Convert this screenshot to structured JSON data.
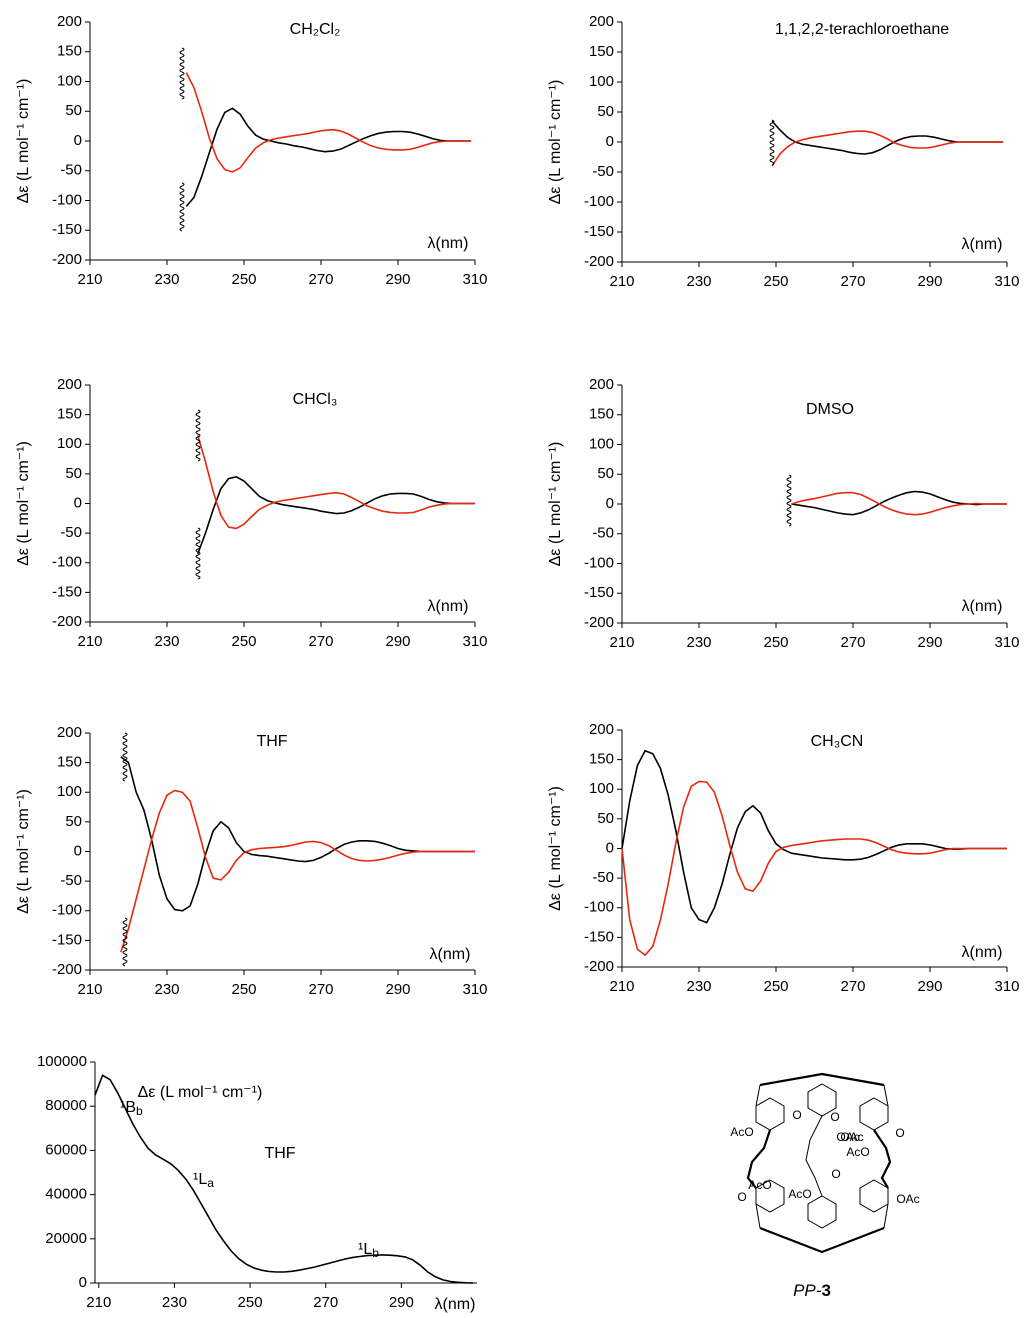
{
  "chart_data": [
    {
      "type": "line",
      "title": "CH₂Cl₂",
      "ylabel": "Δε (L mol⁻¹ cm⁻¹)",
      "xlabel": "λ(nm)",
      "x": [
        235,
        237,
        239,
        241,
        243,
        245,
        247,
        249,
        251,
        253,
        255,
        257,
        259,
        261,
        263,
        265,
        267,
        269,
        271,
        273,
        275,
        277,
        279,
        281,
        283,
        285,
        287,
        289,
        291,
        293,
        295,
        297,
        299,
        301,
        303,
        305,
        307,
        309
      ],
      "series": [
        {
          "color": "#000000",
          "values": [
            -110,
            -95,
            -60,
            -20,
            20,
            48,
            55,
            45,
            25,
            10,
            3,
            0,
            -3,
            -5,
            -8,
            -10,
            -13,
            -16,
            -18,
            -17,
            -14,
            -8,
            -2,
            4,
            9,
            13,
            15,
            16,
            16,
            15,
            12,
            8,
            4,
            1,
            0,
            0,
            0,
            0
          ]
        },
        {
          "color": "#e8280c",
          "values": [
            115,
            90,
            50,
            5,
            -30,
            -48,
            -52,
            -45,
            -28,
            -12,
            -3,
            2,
            5,
            7,
            9,
            11,
            13,
            16,
            18,
            19,
            17,
            12,
            5,
            -2,
            -8,
            -12,
            -14,
            -15,
            -15,
            -14,
            -11,
            -7,
            -3,
            -1,
            0,
            0,
            0,
            0
          ]
        }
      ],
      "xlim": [
        210,
        310
      ],
      "ylim": [
        -200,
        200
      ],
      "xticks": [
        210,
        230,
        250,
        270,
        290,
        310
      ],
      "yticks": [
        -200,
        -150,
        -100,
        -50,
        0,
        50,
        100,
        150,
        200
      ]
    },
    {
      "type": "line",
      "title": "1,1,2,2-terachloroethane",
      "ylabel": "Δε (L mol⁻¹ cm⁻¹)",
      "xlabel": "λ(nm)",
      "x": [
        249,
        251,
        253,
        255,
        257,
        259,
        261,
        263,
        265,
        267,
        269,
        271,
        273,
        275,
        277,
        279,
        281,
        283,
        285,
        287,
        289,
        291,
        293,
        295,
        297,
        299,
        301,
        303,
        305,
        307,
        309
      ],
      "series": [
        {
          "color": "#000000",
          "values": [
            35,
            20,
            8,
            0,
            -4,
            -6,
            -8,
            -10,
            -12,
            -14,
            -17,
            -19,
            -20,
            -18,
            -13,
            -6,
            1,
            6,
            9,
            10,
            10,
            8,
            5,
            2,
            0,
            0,
            0,
            0,
            0,
            0,
            0
          ]
        },
        {
          "color": "#e8280c",
          "values": [
            -40,
            -20,
            -8,
            0,
            4,
            7,
            9,
            11,
            13,
            15,
            17,
            18,
            18,
            16,
            11,
            5,
            -2,
            -6,
            -9,
            -10,
            -10,
            -8,
            -5,
            -2,
            0,
            0,
            0,
            0,
            0,
            0,
            0
          ]
        }
      ],
      "xlim": [
        210,
        310
      ],
      "ylim": [
        -200,
        200
      ],
      "xticks": [
        210,
        230,
        250,
        270,
        290,
        310
      ],
      "yticks": [
        -200,
        -150,
        -100,
        -50,
        0,
        50,
        100,
        150,
        200
      ]
    },
    {
      "type": "line",
      "title": "CHCl₃",
      "ylabel": "Δε (L mol⁻¹ cm⁻¹)",
      "xlabel": "λ(nm)",
      "x": [
        238,
        240,
        242,
        244,
        246,
        248,
        250,
        252,
        254,
        256,
        258,
        260,
        262,
        264,
        266,
        268,
        270,
        272,
        274,
        276,
        278,
        280,
        282,
        284,
        286,
        288,
        290,
        292,
        294,
        296,
        298,
        300,
        302,
        304,
        306,
        308,
        310
      ],
      "series": [
        {
          "color": "#000000",
          "values": [
            -85,
            -50,
            -10,
            25,
            42,
            45,
            38,
            25,
            12,
            5,
            1,
            -2,
            -4,
            -6,
            -8,
            -10,
            -13,
            -15,
            -17,
            -16,
            -12,
            -6,
            1,
            8,
            13,
            16,
            17,
            17,
            16,
            12,
            7,
            3,
            1,
            0,
            0,
            0,
            0
          ]
        },
        {
          "color": "#e8280c",
          "values": [
            115,
            70,
            20,
            -20,
            -40,
            -42,
            -35,
            -22,
            -10,
            -3,
            2,
            5,
            7,
            9,
            11,
            13,
            15,
            17,
            18,
            16,
            10,
            3,
            -4,
            -9,
            -13,
            -15,
            -16,
            -16,
            -15,
            -11,
            -6,
            -3,
            -1,
            0,
            0,
            0,
            0
          ]
        }
      ],
      "xlim": [
        210,
        310
      ],
      "ylim": [
        -200,
        200
      ],
      "xticks": [
        210,
        230,
        250,
        270,
        290,
        310
      ],
      "yticks": [
        -200,
        -150,
        -100,
        -50,
        0,
        50,
        100,
        150,
        200
      ]
    },
    {
      "type": "line",
      "title": "DMSO",
      "ylabel": "Δε (L mol⁻¹ cm⁻¹)",
      "xlabel": "λ(nm)",
      "x": [
        254,
        256,
        258,
        260,
        262,
        264,
        266,
        268,
        270,
        272,
        274,
        276,
        278,
        280,
        282,
        284,
        286,
        288,
        290,
        292,
        294,
        296,
        298,
        300,
        302,
        304,
        306,
        308,
        310
      ],
      "series": [
        {
          "color": "#000000",
          "values": [
            0,
            -2,
            -4,
            -6,
            -9,
            -12,
            -15,
            -17,
            -18,
            -15,
            -10,
            -3,
            4,
            10,
            15,
            19,
            21,
            20,
            17,
            12,
            7,
            3,
            1,
            0,
            -1,
            0,
            0,
            0,
            0
          ]
        },
        {
          "color": "#e8280c",
          "values": [
            0,
            4,
            7,
            9,
            12,
            15,
            18,
            19,
            19,
            16,
            10,
            3,
            -4,
            -10,
            -14,
            -17,
            -18,
            -17,
            -14,
            -10,
            -6,
            -3,
            -1,
            0,
            1,
            0,
            0,
            0,
            0
          ]
        }
      ],
      "xlim": [
        210,
        310
      ],
      "ylim": [
        -200,
        200
      ],
      "xticks": [
        210,
        230,
        250,
        270,
        290,
        310
      ],
      "yticks": [
        -200,
        -150,
        -100,
        -50,
        0,
        50,
        100,
        150,
        200
      ]
    },
    {
      "type": "line",
      "title": "THF",
      "ylabel": "Δε (L mol⁻¹ cm⁻¹)",
      "xlabel": "λ(nm)",
      "x": [
        218,
        220,
        222,
        224,
        226,
        228,
        230,
        232,
        234,
        236,
        238,
        240,
        242,
        244,
        246,
        248,
        250,
        252,
        254,
        256,
        258,
        260,
        262,
        264,
        266,
        268,
        270,
        272,
        274,
        276,
        278,
        280,
        282,
        284,
        286,
        288,
        290,
        292,
        294,
        296,
        298,
        300,
        302,
        304,
        306,
        308,
        310
      ],
      "series": [
        {
          "color": "#000000",
          "values": [
            160,
            150,
            100,
            70,
            20,
            -40,
            -80,
            -98,
            -100,
            -92,
            -55,
            -5,
            35,
            50,
            40,
            15,
            0,
            -5,
            -7,
            -8,
            -10,
            -12,
            -14,
            -16,
            -17,
            -15,
            -10,
            -3,
            5,
            12,
            16,
            18,
            18,
            17,
            14,
            10,
            5,
            2,
            1,
            0,
            0,
            0,
            0,
            0,
            0,
            0,
            0
          ]
        },
        {
          "color": "#e8280c",
          "values": [
            -170,
            -130,
            -80,
            -30,
            20,
            65,
            95,
            103,
            100,
            85,
            40,
            -10,
            -45,
            -48,
            -35,
            -15,
            -2,
            3,
            5,
            6,
            7,
            8,
            10,
            13,
            16,
            17,
            15,
            10,
            2,
            -6,
            -12,
            -15,
            -16,
            -15,
            -13,
            -10,
            -6,
            -3,
            -1,
            0,
            0,
            0,
            0,
            0,
            0,
            0,
            0
          ]
        }
      ],
      "xlim": [
        210,
        310
      ],
      "ylim": [
        -200,
        200
      ],
      "xticks": [
        210,
        230,
        250,
        270,
        290,
        310
      ],
      "yticks": [
        -200,
        -150,
        -100,
        -50,
        0,
        50,
        100,
        150,
        200
      ]
    },
    {
      "type": "line",
      "title": "CH₃CN",
      "ylabel": "Δε (L mol⁻¹ cm⁻¹)",
      "xlabel": "λ(nm)",
      "x": [
        210,
        212,
        214,
        216,
        218,
        220,
        222,
        224,
        226,
        228,
        230,
        232,
        234,
        236,
        238,
        240,
        242,
        244,
        246,
        248,
        250,
        252,
        254,
        256,
        258,
        260,
        262,
        264,
        266,
        268,
        270,
        272,
        274,
        276,
        278,
        280,
        282,
        284,
        286,
        288,
        290,
        292,
        294,
        296,
        298,
        300,
        302,
        304,
        306,
        308,
        310
      ],
      "series": [
        {
          "color": "#000000",
          "values": [
            0,
            80,
            140,
            165,
            160,
            135,
            90,
            30,
            -40,
            -100,
            -120,
            -125,
            -100,
            -60,
            -10,
            35,
            62,
            72,
            60,
            30,
            8,
            -2,
            -8,
            -10,
            -12,
            -14,
            -16,
            -17,
            -18,
            -19,
            -19,
            -18,
            -15,
            -10,
            -4,
            2,
            6,
            8,
            8,
            8,
            6,
            3,
            0,
            -1,
            -1,
            0,
            0,
            0,
            0,
            0,
            0
          ]
        },
        {
          "color": "#e8280c",
          "values": [
            0,
            -120,
            -170,
            -180,
            -165,
            -120,
            -60,
            10,
            70,
            105,
            113,
            112,
            95,
            55,
            5,
            -40,
            -68,
            -72,
            -55,
            -25,
            -5,
            2,
            5,
            7,
            9,
            11,
            13,
            14,
            15,
            16,
            16,
            16,
            14,
            10,
            4,
            -2,
            -6,
            -8,
            -9,
            -9,
            -8,
            -5,
            -2,
            0,
            0,
            0,
            0,
            0,
            0,
            0,
            0
          ]
        }
      ],
      "xlim": [
        210,
        310
      ],
      "ylim": [
        -200,
        200
      ],
      "xticks": [
        210,
        230,
        250,
        270,
        290,
        310
      ],
      "yticks": [
        -200,
        -150,
        -100,
        -50,
        0,
        50,
        100,
        150,
        200
      ]
    },
    {
      "type": "line",
      "title": "THF",
      "ylabel": "Δε (L mol⁻¹ cm⁻¹)",
      "xlabel": "λ(nm)",
      "annotations": [
        {
          "text": "¹B",
          "sub": "b"
        },
        {
          "text": "¹L",
          "sub": "a"
        },
        {
          "text": "¹L",
          "sub": "b"
        }
      ],
      "x": [
        209,
        211,
        213,
        215,
        217,
        219,
        221,
        223,
        225,
        227,
        229,
        231,
        233,
        235,
        237,
        239,
        241,
        243,
        245,
        247,
        249,
        251,
        253,
        255,
        257,
        259,
        261,
        263,
        265,
        267,
        269,
        271,
        273,
        275,
        277,
        279,
        281,
        283,
        285,
        287,
        289,
        291,
        293,
        295,
        297,
        299,
        301,
        303,
        305,
        307,
        309
      ],
      "series": [
        {
          "color": "#000000",
          "values": [
            85000,
            94000,
            92000,
            86000,
            79000,
            72000,
            66000,
            61000,
            58000,
            56000,
            54000,
            51000,
            47000,
            42000,
            36000,
            30000,
            24000,
            19000,
            14500,
            11000,
            8500,
            6800,
            5800,
            5200,
            5000,
            5000,
            5300,
            5800,
            6500,
            7200,
            8100,
            9000,
            9900,
            10800,
            11500,
            12000,
            12400,
            12600,
            12700,
            12600,
            12300,
            11800,
            10500,
            8000,
            5000,
            2800,
            1400,
            700,
            300,
            100,
            0
          ]
        }
      ],
      "xlim": [
        209,
        310
      ],
      "ylim": [
        0,
        100000
      ],
      "xticks": [
        210,
        230,
        250,
        270,
        290
      ],
      "yticks": [
        0,
        20000,
        40000,
        60000,
        80000,
        100000
      ]
    }
  ],
  "structure": {
    "labels": [
      "AcO",
      "O",
      "O",
      "OAc",
      "AcO",
      "O",
      "AcO",
      "O",
      "AcO",
      "OAc",
      "O",
      "OAc"
    ],
    "caption": {
      "italic": "PP-",
      "bold": "3"
    }
  }
}
